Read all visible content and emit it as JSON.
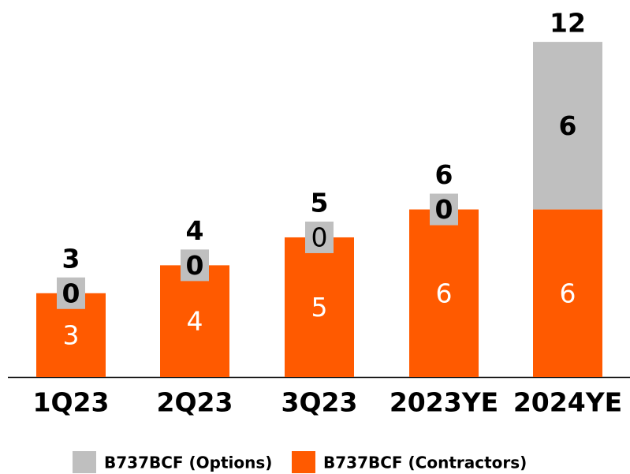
{
  "chart_data": {
    "type": "stacked_bar",
    "categories": [
      "1Q23",
      "2Q23",
      "3Q23",
      "2023YE",
      "2024YE"
    ],
    "series": [
      {
        "name": "B737BCF (Contractors)",
        "color": "#ff5a00",
        "values": [
          3,
          4,
          5,
          6,
          6
        ]
      },
      {
        "name": "B737BCF (Options)",
        "color": "#bfbfbf",
        "values": [
          0,
          0,
          0,
          0,
          6
        ]
      }
    ],
    "totals": [
      3,
      4,
      5,
      6,
      12
    ],
    "ylim": [
      0,
      13.5
    ],
    "legend": "bottom"
  }
}
